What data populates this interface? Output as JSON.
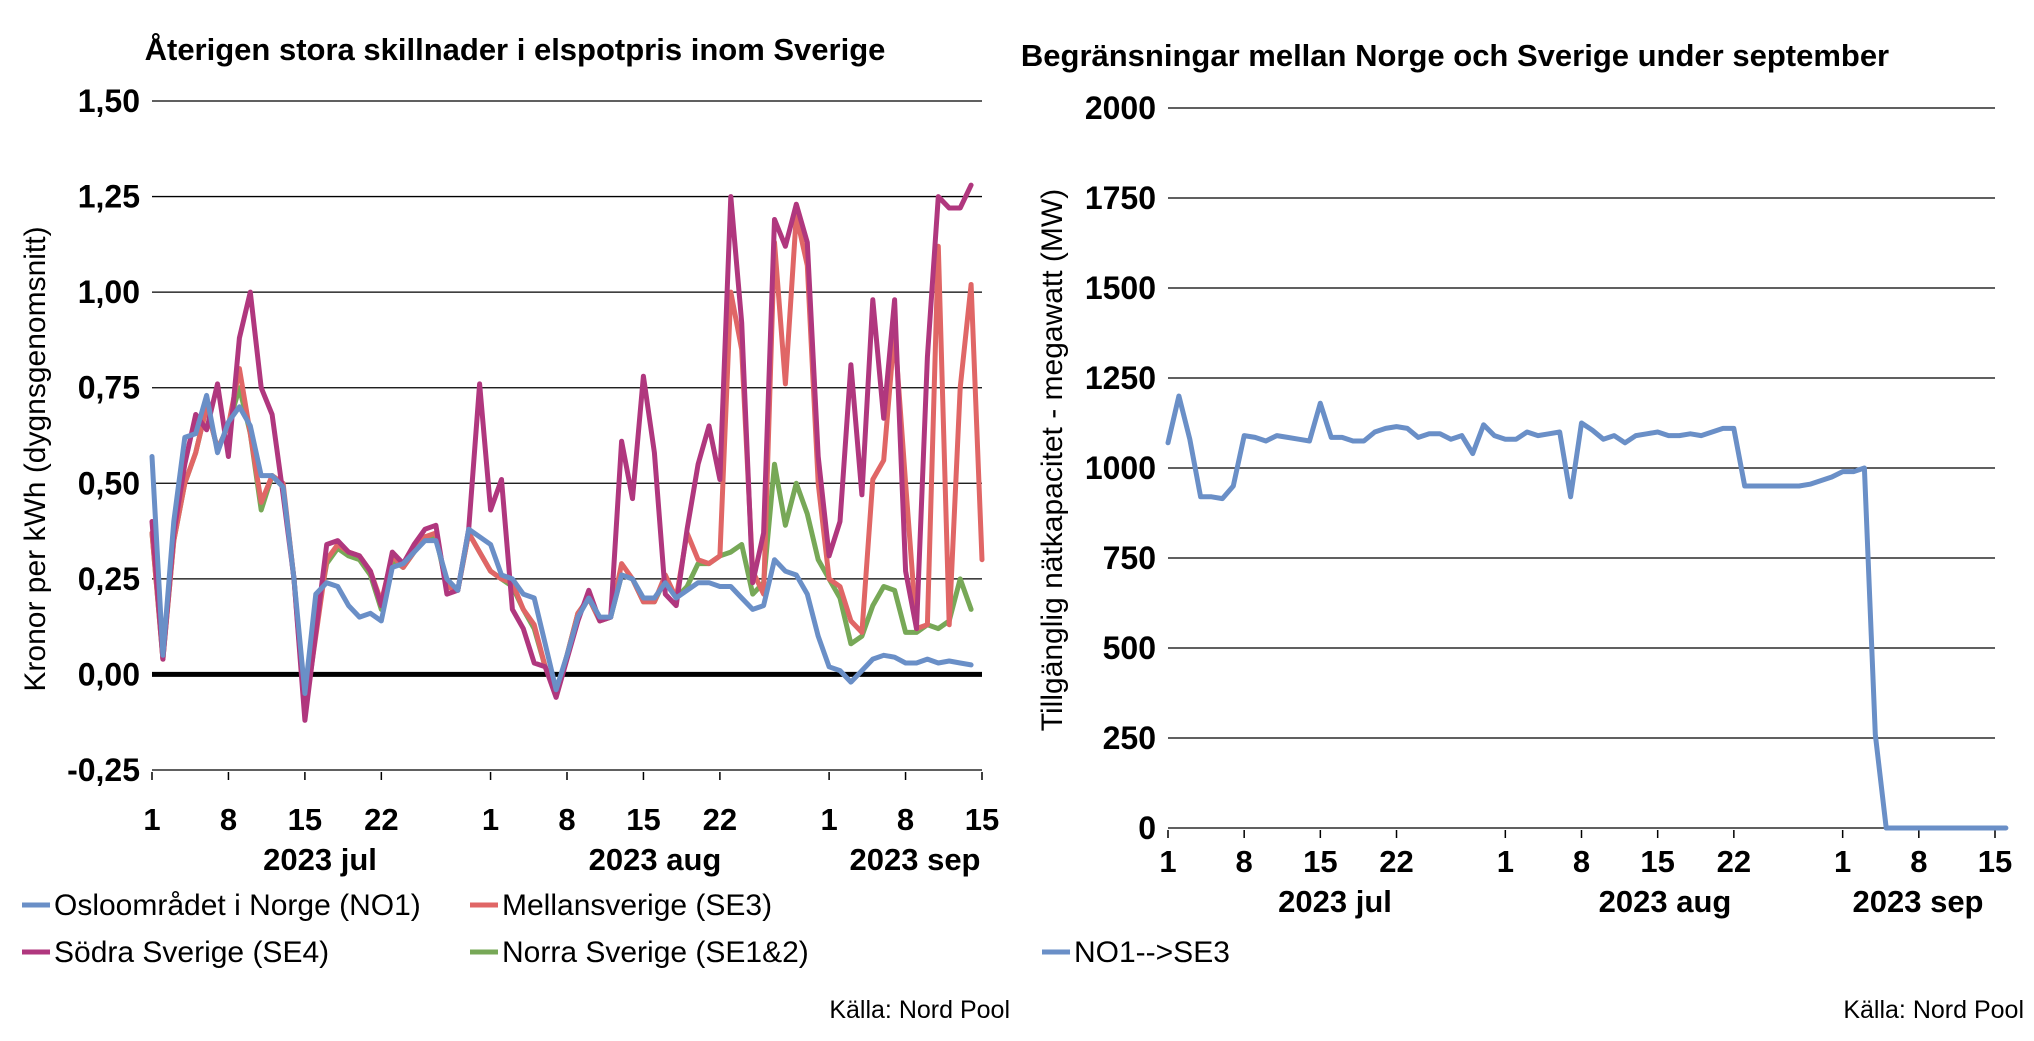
{
  "chart_data": [
    {
      "type": "line",
      "title": "Återigen stora skillnader i elspotpris inom Sverige",
      "ylabel": "Kronor per kWh (dygnsgenomsnitt)",
      "ylim": [
        -0.25,
        1.5
      ],
      "yticks": [
        "-0,25",
        "0,00",
        "0,25",
        "0,50",
        "0,75",
        "1,00",
        "1,25",
        "1,50"
      ],
      "xticks": [
        "1",
        "8",
        "15",
        "22",
        "1",
        "8",
        "15",
        "22",
        "1",
        "8",
        "15"
      ],
      "months": [
        "2023 jul",
        "2023 aug",
        "2023 sep"
      ],
      "grid": true,
      "legend": "bottom",
      "source": "Källa: Nord Pool",
      "colors": {
        "NO1": "#6a8fc7",
        "SE3": "#e06666",
        "SE4": "#b0377e",
        "SE12": "#77a857",
        "zero": "#000000"
      },
      "series": [
        {
          "name": "Osloområdet i Norge (NO1)",
          "key": "NO1",
          "values": [
            0.57,
            0.05,
            0.4,
            0.62,
            0.63,
            0.73,
            0.58,
            0.66,
            0.7,
            0.65,
            0.52,
            0.52,
            0.49,
            0.25,
            -0.05,
            0.21,
            0.24,
            0.23,
            0.18,
            0.15,
            0.16,
            0.14,
            0.28,
            0.29,
            0.32,
            0.35,
            0.35,
            0.25,
            0.22,
            0.38,
            0.36,
            0.34,
            0.26,
            0.25,
            0.21,
            0.2,
            0.08,
            -0.04,
            0.05,
            0.15,
            0.2,
            0.15,
            0.15,
            0.26,
            0.25,
            0.2,
            0.2,
            0.24,
            0.2,
            0.22,
            0.24,
            0.24,
            0.23,
            0.23,
            0.2,
            0.17,
            0.18,
            0.3,
            0.27,
            0.26,
            0.21,
            0.1,
            0.02,
            0.01,
            -0.02,
            0.01,
            0.04,
            0.05,
            0.045,
            0.03,
            0.03,
            0.04,
            0.03,
            0.035,
            0.03,
            0.025
          ]
        },
        {
          "name": "Mellansverige (SE3)",
          "key": "SE3",
          "values": [
            0.37,
            0.04,
            0.35,
            0.5,
            0.58,
            0.7,
            0.59,
            0.65,
            0.8,
            0.63,
            0.45,
            0.52,
            0.5,
            0.25,
            -0.1,
            0.1,
            0.3,
            0.34,
            0.32,
            0.31,
            0.27,
            0.19,
            0.31,
            0.28,
            0.32,
            0.36,
            0.37,
            0.23,
            0.22,
            0.37,
            0.32,
            0.27,
            0.25,
            0.24,
            0.17,
            0.13,
            0.02,
            -0.05,
            0.05,
            0.16,
            0.2,
            0.14,
            0.15,
            0.29,
            0.25,
            0.19,
            0.19,
            0.26,
            0.2,
            0.37,
            0.3,
            0.29,
            0.31,
            1.0,
            0.85,
            0.27,
            0.21,
            1.13,
            0.76,
            1.2,
            1.07,
            0.5,
            0.25,
            0.23,
            0.14,
            0.11,
            0.51,
            0.56,
            0.9,
            0.5,
            0.12,
            0.13,
            1.12,
            0.13,
            0.75,
            1.02,
            0.3
          ]
        },
        {
          "name": "Södra Sverige (SE4)",
          "key": "SE4",
          "values": [
            0.4,
            0.04,
            0.37,
            0.55,
            0.68,
            0.64,
            0.76,
            0.57,
            0.88,
            1.0,
            0.75,
            0.68,
            0.47,
            0.25,
            -0.12,
            0.11,
            0.34,
            0.35,
            0.32,
            0.31,
            0.27,
            0.18,
            0.32,
            0.29,
            0.34,
            0.38,
            0.39,
            0.21,
            0.22,
            0.38,
            0.76,
            0.43,
            0.51,
            0.17,
            0.12,
            0.03,
            0.02,
            -0.06,
            0.04,
            0.14,
            0.22,
            0.14,
            0.15,
            0.61,
            0.46,
            0.78,
            0.58,
            0.21,
            0.18,
            0.38,
            0.55,
            0.65,
            0.51,
            1.25,
            0.92,
            0.24,
            0.37,
            1.19,
            1.12,
            1.23,
            1.13,
            0.57,
            0.31,
            0.4,
            0.81,
            0.47,
            0.98,
            0.67,
            0.98,
            0.27,
            0.12,
            0.83,
            1.25,
            1.22,
            1.22,
            1.28
          ]
        },
        {
          "name": "Norra Sverige (SE1&2)",
          "key": "SE12",
          "values": [
            0.37,
            0.04,
            0.35,
            0.5,
            0.58,
            0.7,
            0.59,
            0.65,
            0.75,
            0.63,
            0.43,
            0.52,
            0.49,
            0.25,
            -0.09,
            0.13,
            0.29,
            0.33,
            0.31,
            0.3,
            0.26,
            0.17,
            0.3,
            0.28,
            0.32,
            0.36,
            0.36,
            0.23,
            0.22,
            0.37,
            0.32,
            0.27,
            0.25,
            0.23,
            0.17,
            0.12,
            0.02,
            -0.05,
            0.05,
            0.16,
            0.2,
            0.14,
            0.15,
            0.26,
            0.25,
            0.19,
            0.19,
            0.25,
            0.2,
            0.23,
            0.29,
            0.29,
            0.31,
            0.32,
            0.34,
            0.21,
            0.24,
            0.55,
            0.39,
            0.5,
            0.42,
            0.3,
            0.25,
            0.2,
            0.08,
            0.1,
            0.18,
            0.23,
            0.22,
            0.11,
            0.11,
            0.13,
            0.12,
            0.14,
            0.25,
            0.17
          ]
        }
      ]
    },
    {
      "type": "line",
      "title": "Begränsningar mellan Norge och Sverige under september",
      "ylabel": "Tillgänglig nätkapacitet - megawatt (MW)",
      "ylim": [
        0,
        2000
      ],
      "yticks": [
        "0",
        "250",
        "500",
        "750",
        "1000",
        "1250",
        "1500",
        "1750",
        "2000"
      ],
      "xticks": [
        "1",
        "8",
        "15",
        "22",
        "1",
        "8",
        "15",
        "22",
        "1",
        "8",
        "15"
      ],
      "months": [
        "2023 jul",
        "2023 aug",
        "2023 sep"
      ],
      "grid": true,
      "legend": "bottom",
      "source": "Källa: Nord Pool",
      "colors": {
        "NO1_SE3": "#6a8fc7"
      },
      "series": [
        {
          "name": "NO1-->SE3",
          "key": "NO1_SE3",
          "values": [
            1070,
            1200,
            1080,
            920,
            920,
            915,
            950,
            1090,
            1085,
            1075,
            1090,
            1085,
            1080,
            1075,
            1180,
            1085,
            1085,
            1075,
            1075,
            1100,
            1110,
            1115,
            1110,
            1085,
            1095,
            1095,
            1080,
            1090,
            1040,
            1120,
            1090,
            1080,
            1080,
            1100,
            1090,
            1095,
            1100,
            920,
            1125,
            1105,
            1080,
            1090,
            1070,
            1090,
            1095,
            1100,
            1090,
            1090,
            1095,
            1090,
            1100,
            1110,
            1110,
            950,
            950,
            950,
            950,
            950,
            950,
            955,
            965,
            975,
            990,
            990,
            1000,
            260,
            0,
            0,
            0,
            0,
            0,
            0,
            0,
            0,
            0,
            0,
            0,
            0
          ]
        }
      ]
    }
  ],
  "legend_left": {
    "items": [
      {
        "label": "Osloområdet i Norge (NO1)",
        "key": "NO1"
      },
      {
        "label": "Mellansverige (SE3)",
        "key": "SE3"
      },
      {
        "label": "Södra Sverige (SE4)",
        "key": "SE4"
      },
      {
        "label": "Norra Sverige (SE1&2)",
        "key": "SE12"
      }
    ]
  },
  "legend_right": {
    "items": [
      {
        "label": "NO1-->SE3",
        "key": "NO1_SE3"
      }
    ]
  }
}
